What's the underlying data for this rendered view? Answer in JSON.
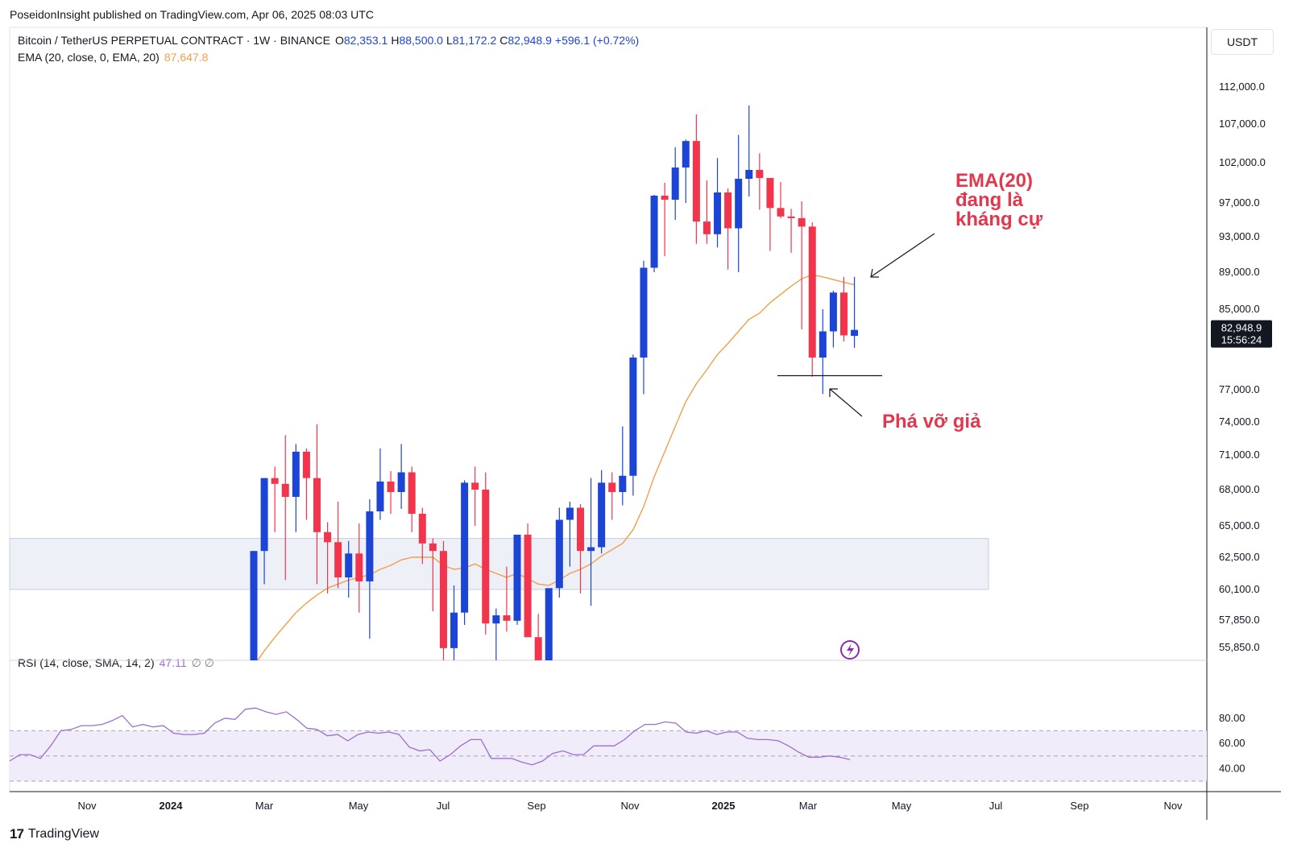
{
  "header": {
    "text": "PoseidonInsight published on TradingView.com, Apr 06, 2025 08:03 UTC"
  },
  "symbol": {
    "title": "Bitcoin / TetherUS PERPETUAL CONTRACT · 1W · BINANCE",
    "open_label": "O",
    "open": "82,353.1",
    "high_label": "H",
    "high": "88,500.0",
    "low_label": "L",
    "low": "81,172.2",
    "close_label": "C",
    "close": "82,948.9",
    "change": "+596.1 (+0.72%)"
  },
  "ema_legend": {
    "label": "EMA (20, close, 0, EMA, 20)",
    "value": "87,647.8"
  },
  "rsi_legend": {
    "label": "RSI (14, close, SMA, 14, 2)",
    "value": "47.11",
    "extra": "∅ ∅"
  },
  "currency": "USDT",
  "last_price": {
    "value": "82,948.9",
    "countdown": "15:56:24"
  },
  "annotations": {
    "ema_line1": "EMA(20)",
    "ema_line2": "đang là",
    "ema_line3": "kháng cự",
    "fake_break": "Phá vỡ giả"
  },
  "footer": {
    "brand": "TradingView"
  },
  "colors": {
    "up": "#1c45d6",
    "down": "#f0354c",
    "ema": "#f0a04a",
    "rsi": "#9b6fd1",
    "zone": "#eef0f7",
    "annotation": "#e2384d"
  },
  "chart_data": [
    {
      "type": "candlestick",
      "title": "Bitcoin / TetherUS PERPETUAL CONTRACT · 1W · BINANCE",
      "y_axis_ticks": [
        "112,000.0",
        "107,000.0",
        "102,000.0",
        "97,000.0",
        "93,000.0",
        "89,000.0",
        "85,000.0",
        "77,000.0",
        "74,000.0",
        "71,000.0",
        "68,000.0",
        "65,000.0",
        "62,500.0",
        "60,100.0",
        "57,850.0",
        "55,850.0"
      ],
      "x_axis_ticks": [
        "Nov",
        "2024",
        "Mar",
        "May",
        "Jul",
        "Sep",
        "Nov",
        "2025",
        "Mar",
        "May",
        "Jul",
        "Sep",
        "Nov"
      ],
      "support_zone": [
        60100,
        64000
      ],
      "fake_breakout_level": 78400,
      "candles_ohlc": [
        [
          51700,
          63000,
          51500,
          63000
        ],
        [
          63000,
          69000,
          60500,
          69000
        ],
        [
          69000,
          70000,
          64500,
          68500
        ],
        [
          68500,
          72800,
          60800,
          67400
        ],
        [
          67400,
          72000,
          64500,
          71300
        ],
        [
          71300,
          71600,
          65500,
          69000
        ],
        [
          69000,
          73800,
          60500,
          64500
        ],
        [
          64500,
          65300,
          59800,
          63700
        ],
        [
          63700,
          67000,
          60200,
          61000
        ],
        [
          61000,
          63800,
          59500,
          62800
        ],
        [
          62800,
          65200,
          58400,
          60700
        ],
        [
          60700,
          67200,
          56500,
          66200
        ],
        [
          66200,
          71600,
          65500,
          68700
        ],
        [
          68700,
          69600,
          66000,
          67800
        ],
        [
          67800,
          72000,
          66400,
          69500
        ],
        [
          69500,
          70000,
          64500,
          66000
        ],
        [
          66000,
          66500,
          62000,
          63600
        ],
        [
          63600,
          64000,
          58500,
          63000
        ],
        [
          63000,
          63800,
          53600,
          55800
        ],
        [
          55800,
          60400,
          53500,
          58400
        ],
        [
          58400,
          68800,
          57500,
          68600
        ],
        [
          68600,
          70000,
          65000,
          68000
        ],
        [
          68000,
          69500,
          56800,
          57600
        ],
        [
          57600,
          58700,
          49400,
          58200
        ],
        [
          58200,
          61800,
          57000,
          57800
        ],
        [
          57800,
          64000,
          57500,
          64300
        ],
        [
          64300,
          65200,
          58600,
          56600
        ],
        [
          56600,
          58300,
          52500,
          54100
        ],
        [
          54100,
          60000,
          53000,
          60200
        ],
        [
          60200,
          66500,
          59500,
          65500
        ],
        [
          65500,
          67000,
          61800,
          66500
        ],
        [
          66500,
          66800,
          59800,
          63000
        ],
        [
          63000,
          69000,
          58900,
          63300
        ],
        [
          63300,
          69700,
          62800,
          68600
        ],
        [
          68600,
          69500,
          65500,
          67800
        ],
        [
          67800,
          73600,
          66700,
          69200
        ],
        [
          69200,
          80500,
          67500,
          80200
        ],
        [
          80200,
          90300,
          76600,
          89500
        ],
        [
          89500,
          98000,
          89000,
          97900
        ],
        [
          97900,
          99500,
          90800,
          97400
        ],
        [
          97400,
          104000,
          95000,
          101400
        ],
        [
          101400,
          105000,
          97000,
          104800
        ],
        [
          104800,
          108300,
          92200,
          94800
        ],
        [
          94800,
          99800,
          92200,
          93300
        ],
        [
          93300,
          102600,
          91800,
          98300
        ],
        [
          98300,
          98800,
          89300,
          94000
        ],
        [
          94000,
          105600,
          89000,
          100000
        ],
        [
          100000,
          109500,
          97800,
          101100
        ],
        [
          101100,
          103200,
          96200,
          100100
        ],
        [
          100100,
          100000,
          91400,
          96400
        ],
        [
          96400,
          99600,
          95200,
          95400
        ],
        [
          95400,
          96300,
          91200,
          95200
        ],
        [
          95200,
          97200,
          83000,
          94200
        ],
        [
          94200,
          94700,
          78300,
          80200
        ],
        [
          80200,
          85000,
          76600,
          82800
        ],
        [
          82800,
          87000,
          81200,
          86800
        ],
        [
          86800,
          88500,
          81800,
          82400
        ],
        [
          82353.1,
          88500,
          81172.2,
          82948.9
        ]
      ],
      "ema20": [
        54500,
        55600,
        56600,
        57500,
        58400,
        59100,
        59700,
        60200,
        60500,
        60800,
        61000,
        61200,
        61600,
        61900,
        62300,
        62500,
        62500,
        62500,
        61900,
        61600,
        61700,
        62000,
        61600,
        61300,
        61000,
        61300,
        60900,
        60500,
        60400,
        60800,
        61300,
        61600,
        62000,
        62600,
        63100,
        63600,
        64700,
        66600,
        69100,
        71300,
        73600,
        75900,
        77600,
        79000,
        80500,
        81600,
        82800,
        84000,
        84600,
        85700,
        86600,
        87500,
        88300,
        88700,
        88500,
        88200,
        87900,
        87647.8
      ],
      "rsi": {
        "label": "RSI (14, close, SMA, 14, 2)",
        "last": 47.11,
        "levels": [
          30,
          50,
          70
        ],
        "y_ticks": [
          "80.00",
          "60.00",
          "40.00"
        ],
        "values": [
          46,
          51,
          51,
          48,
          58,
          70,
          71,
          74,
          74,
          75,
          78,
          82,
          73,
          75,
          73,
          74,
          68,
          67,
          67,
          68,
          76,
          80,
          79,
          87,
          88,
          85,
          83,
          85,
          79,
          72,
          71,
          66,
          67,
          62,
          67,
          69,
          68,
          69,
          67,
          57,
          54,
          55,
          46,
          51,
          58,
          63,
          63,
          48,
          48,
          48,
          45,
          43,
          46,
          52,
          54,
          51,
          51,
          58,
          58,
          58,
          63,
          70,
          75,
          75,
          77,
          76,
          69,
          68,
          70,
          67,
          69,
          69,
          64,
          63,
          63,
          62,
          58,
          53,
          49,
          49,
          50,
          49,
          47.11
        ]
      }
    }
  ]
}
